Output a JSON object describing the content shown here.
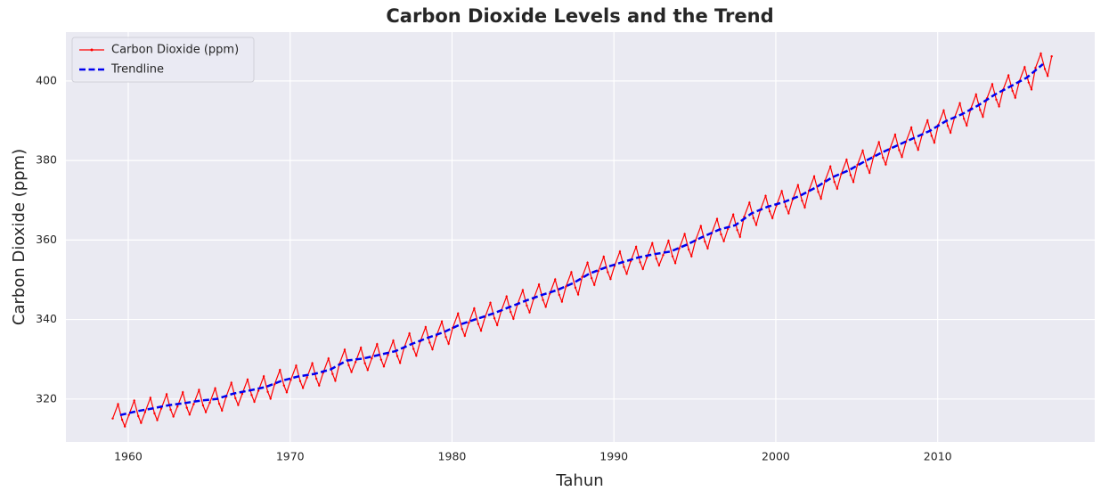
{
  "chart_data": {
    "type": "line",
    "title": "Carbon Dioxide Levels and the Trend",
    "xlabel": "Tahun",
    "ylabel": "Carbon Dioxide (ppm)",
    "xlim": [
      1956.15,
      2019.7
    ],
    "ylim": [
      309.2,
      412.3
    ],
    "xticks": [
      1960,
      1970,
      1980,
      1990,
      2000,
      2010
    ],
    "yticks": [
      320,
      340,
      360,
      380,
      400
    ],
    "grid": true,
    "legend": "upper left",
    "series": [
      {
        "name": "Carbon Dioxide (ppm)",
        "color": "#ff0000",
        "linestyle": "solid",
        "marker": true,
        "x": [
          1959.04,
          1959.37,
          1959.62,
          1959.79,
          1960.04,
          1960.37,
          1960.62,
          1960.79,
          1961.04,
          1961.37,
          1961.62,
          1961.79,
          1962.04,
          1962.37,
          1962.62,
          1962.79,
          1963.04,
          1963.37,
          1963.62,
          1963.79,
          1964.04,
          1964.37,
          1964.62,
          1964.79,
          1965.04,
          1965.37,
          1965.62,
          1965.79,
          1966.04,
          1966.37,
          1966.62,
          1966.79,
          1967.04,
          1967.37,
          1967.62,
          1967.79,
          1968.04,
          1968.37,
          1968.62,
          1968.79,
          1969.04,
          1969.37,
          1969.62,
          1969.79,
          1970.04,
          1970.37,
          1970.62,
          1970.79,
          1971.04,
          1971.37,
          1971.62,
          1971.79,
          1972.04,
          1972.37,
          1972.62,
          1972.79,
          1973.04,
          1973.37,
          1973.62,
          1973.79,
          1974.04,
          1974.37,
          1974.62,
          1974.79,
          1975.04,
          1975.37,
          1975.62,
          1975.79,
          1976.04,
          1976.37,
          1976.62,
          1976.79,
          1977.04,
          1977.37,
          1977.62,
          1977.79,
          1978.04,
          1978.37,
          1978.62,
          1978.79,
          1979.04,
          1979.37,
          1979.62,
          1979.79,
          1980.04,
          1980.37,
          1980.62,
          1980.79,
          1981.04,
          1981.37,
          1981.62,
          1981.79,
          1982.04,
          1982.37,
          1982.62,
          1982.79,
          1983.04,
          1983.37,
          1983.62,
          1983.79,
          1984.04,
          1984.37,
          1984.62,
          1984.79,
          1985.04,
          1985.37,
          1985.62,
          1985.79,
          1986.04,
          1986.37,
          1986.62,
          1986.79,
          1987.04,
          1987.37,
          1987.62,
          1987.79,
          1988.04,
          1988.37,
          1988.62,
          1988.79,
          1989.04,
          1989.37,
          1989.62,
          1989.79,
          1990.04,
          1990.37,
          1990.62,
          1990.79,
          1991.04,
          1991.37,
          1991.62,
          1991.79,
          1992.04,
          1992.37,
          1992.62,
          1992.79,
          1993.04,
          1993.37,
          1993.62,
          1993.79,
          1994.04,
          1994.37,
          1994.62,
          1994.79,
          1995.04,
          1995.37,
          1995.62,
          1995.79,
          1996.04,
          1996.37,
          1996.62,
          1996.79,
          1997.04,
          1997.37,
          1997.62,
          1997.79,
          1998.04,
          1998.37,
          1998.62,
          1998.79,
          1999.04,
          1999.37,
          1999.62,
          1999.79,
          2000.04,
          2000.37,
          2000.62,
          2000.79,
          2001.04,
          2001.37,
          2001.62,
          2001.79,
          2002.04,
          2002.37,
          2002.62,
          2002.79,
          2003.04,
          2003.37,
          2003.62,
          2003.79,
          2004.04,
          2004.37,
          2004.62,
          2004.79,
          2005.04,
          2005.37,
          2005.62,
          2005.79,
          2006.04,
          2006.37,
          2006.62,
          2006.79,
          2007.04,
          2007.37,
          2007.62,
          2007.79,
          2008.04,
          2008.37,
          2008.62,
          2008.79,
          2009.04,
          2009.37,
          2009.62,
          2009.79,
          2010.04,
          2010.37,
          2010.62,
          2010.79,
          2011.04,
          2011.37,
          2011.62,
          2011.79,
          2012.04,
          2012.37,
          2012.62,
          2012.79,
          2013.04,
          2013.37,
          2013.62,
          2013.79,
          2014.04,
          2014.37,
          2014.62,
          2014.79,
          2015.04,
          2015.37,
          2015.62,
          2015.79,
          2016.04,
          2016.37,
          2016.62,
          2016.79,
          2017.04
        ],
        "values": [
          315.1,
          318.7,
          314.8,
          313.1,
          316.0,
          319.6,
          315.7,
          314.0,
          316.7,
          320.3,
          316.4,
          314.7,
          317.6,
          321.2,
          317.3,
          315.6,
          318.1,
          321.7,
          317.8,
          316.1,
          318.7,
          322.3,
          318.4,
          316.7,
          319.1,
          322.7,
          318.8,
          317.1,
          320.5,
          324.1,
          320.2,
          318.5,
          321.3,
          324.9,
          321.0,
          319.3,
          322.1,
          325.7,
          321.8,
          320.1,
          323.7,
          327.3,
          323.4,
          321.7,
          324.8,
          328.4,
          324.5,
          322.8,
          325.4,
          329.0,
          325.1,
          323.4,
          326.6,
          330.2,
          326.3,
          324.6,
          328.8,
          332.4,
          328.5,
          326.8,
          329.3,
          332.9,
          329.0,
          327.3,
          330.2,
          333.8,
          329.9,
          328.2,
          331.1,
          334.7,
          330.8,
          329.1,
          332.9,
          336.5,
          332.6,
          330.9,
          334.5,
          338.1,
          334.2,
          332.5,
          335.9,
          339.5,
          335.6,
          333.9,
          337.9,
          341.5,
          337.6,
          335.9,
          339.2,
          342.8,
          338.9,
          337.2,
          340.6,
          344.2,
          340.3,
          338.6,
          342.2,
          345.8,
          341.9,
          340.2,
          343.8,
          347.4,
          343.5,
          341.8,
          345.2,
          348.8,
          344.9,
          343.2,
          346.5,
          350.1,
          346.2,
          344.5,
          348.3,
          351.9,
          348.0,
          346.3,
          350.7,
          354.3,
          350.4,
          348.7,
          352.2,
          355.8,
          351.9,
          350.2,
          353.5,
          357.1,
          353.2,
          351.5,
          354.7,
          358.3,
          354.4,
          352.7,
          355.6,
          359.2,
          355.3,
          353.6,
          356.2,
          359.8,
          355.9,
          354.2,
          357.9,
          361.5,
          357.6,
          355.9,
          359.9,
          363.5,
          359.6,
          357.9,
          361.7,
          365.3,
          361.4,
          359.7,
          362.8,
          366.4,
          362.5,
          360.8,
          365.8,
          369.4,
          365.5,
          363.8,
          367.5,
          371.1,
          367.2,
          365.5,
          368.7,
          372.3,
          368.4,
          366.7,
          370.2,
          373.8,
          369.9,
          368.2,
          372.4,
          376.0,
          372.1,
          370.4,
          374.9,
          378.5,
          374.6,
          372.9,
          376.6,
          380.2,
          376.3,
          374.6,
          378.9,
          382.5,
          378.6,
          376.9,
          381.0,
          384.6,
          380.7,
          379.0,
          382.9,
          386.5,
          382.6,
          380.9,
          384.7,
          388.3,
          384.4,
          382.7,
          386.5,
          390.1,
          386.2,
          384.5,
          389.0,
          392.6,
          388.7,
          387.0,
          390.8,
          394.4,
          390.5,
          388.8,
          393.0,
          396.6,
          392.7,
          391.0,
          395.6,
          399.2,
          395.3,
          393.6,
          397.8,
          401.4,
          397.5,
          395.8,
          399.9,
          403.5,
          399.6,
          397.9,
          403.3,
          406.9,
          403.0,
          401.3,
          406.2
        ]
      },
      {
        "name": "Trendline",
        "color": "#0000ee",
        "linestyle": "dashed",
        "marker": false,
        "x": [
          1959.5,
          1960.5,
          1961.5,
          1962.5,
          1963.5,
          1964.5,
          1965.5,
          1966.5,
          1967.5,
          1968.5,
          1969.5,
          1970.5,
          1971.5,
          1972.5,
          1973.5,
          1974.5,
          1975.5,
          1976.5,
          1977.5,
          1978.5,
          1979.5,
          1980.5,
          1981.5,
          1982.5,
          1983.5,
          1984.5,
          1985.5,
          1986.5,
          1987.5,
          1988.5,
          1989.5,
          1990.5,
          1991.5,
          1992.5,
          1993.5,
          1994.5,
          1995.5,
          1996.5,
          1997.5,
          1998.5,
          1999.5,
          2000.5,
          2001.5,
          2002.5,
          2003.5,
          2004.5,
          2005.5,
          2006.5,
          2007.5,
          2008.5,
          2009.5,
          2010.5,
          2011.5,
          2012.5,
          2013.5,
          2014.5,
          2015.5,
          2016.5
        ],
        "values": [
          315.97,
          316.91,
          317.64,
          318.45,
          318.99,
          319.62,
          320.04,
          321.38,
          322.16,
          323.04,
          324.62,
          325.68,
          326.32,
          327.45,
          329.68,
          330.18,
          331.11,
          332.04,
          333.83,
          335.4,
          336.84,
          338.75,
          340.11,
          341.45,
          343.05,
          344.65,
          346.12,
          347.42,
          349.19,
          351.57,
          353.12,
          354.39,
          355.61,
          356.45,
          357.1,
          358.83,
          360.82,
          362.61,
          363.73,
          366.7,
          368.38,
          369.55,
          371.14,
          373.28,
          375.8,
          377.52,
          379.8,
          381.9,
          383.79,
          385.6,
          387.43,
          389.9,
          391.65,
          393.85,
          396.52,
          398.65,
          400.83,
          404.24
        ]
      }
    ]
  }
}
